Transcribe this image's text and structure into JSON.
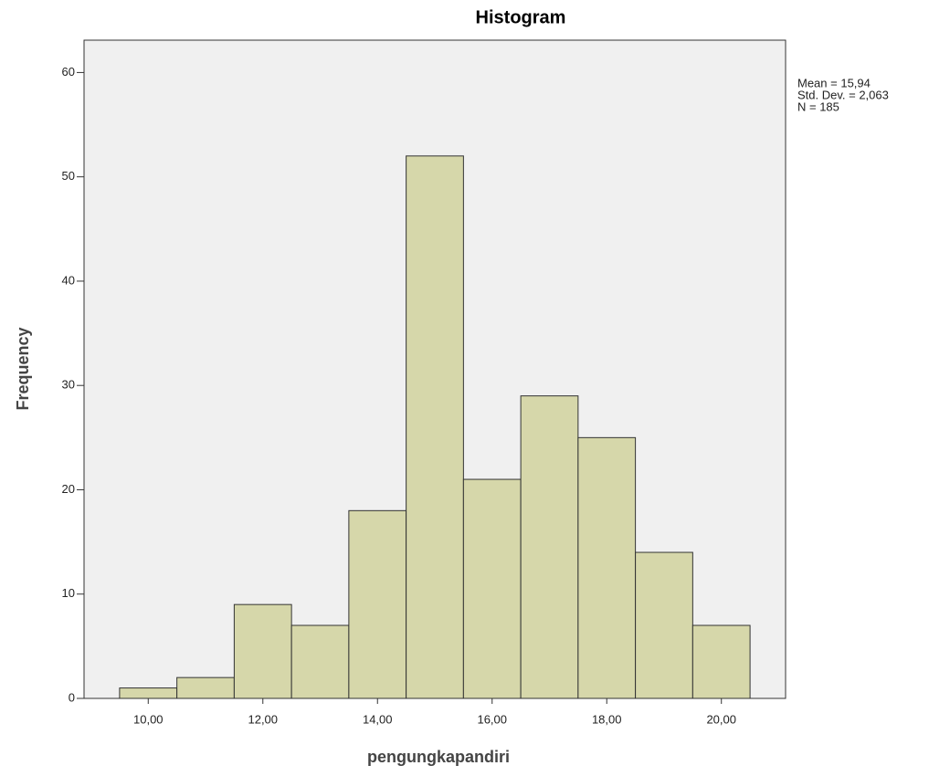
{
  "chart_data": {
    "type": "histogram",
    "title": "Histogram",
    "x_label": "pengungkapandiri",
    "y_label": "Frequency",
    "bins": [
      9.5,
      10.5,
      11.5,
      12.5,
      13.5,
      14.5,
      15.5,
      16.5,
      17.5,
      18.5,
      19.5,
      20.5
    ],
    "values": [
      1,
      2,
      9,
      7,
      18,
      52,
      21,
      29,
      25,
      14,
      7
    ],
    "color": "#d6d7aa",
    "xlim": [
      8.88,
      21.12
    ],
    "xticks": [
      {
        "value": 10,
        "label": "10,00"
      },
      {
        "value": 12,
        "label": "12,00"
      },
      {
        "value": 14,
        "label": "14,00"
      },
      {
        "value": 16,
        "label": "16,00"
      },
      {
        "value": 18,
        "label": "18,00"
      },
      {
        "value": 20,
        "label": "20,00"
      }
    ],
    "ylim": [
      0,
      63.1
    ],
    "yticks": [
      0,
      10,
      20,
      30,
      40,
      50,
      60
    ],
    "annotations": [
      "Mean = 15,94",
      "Std. Dev. = 2,063",
      "N = 185"
    ]
  }
}
